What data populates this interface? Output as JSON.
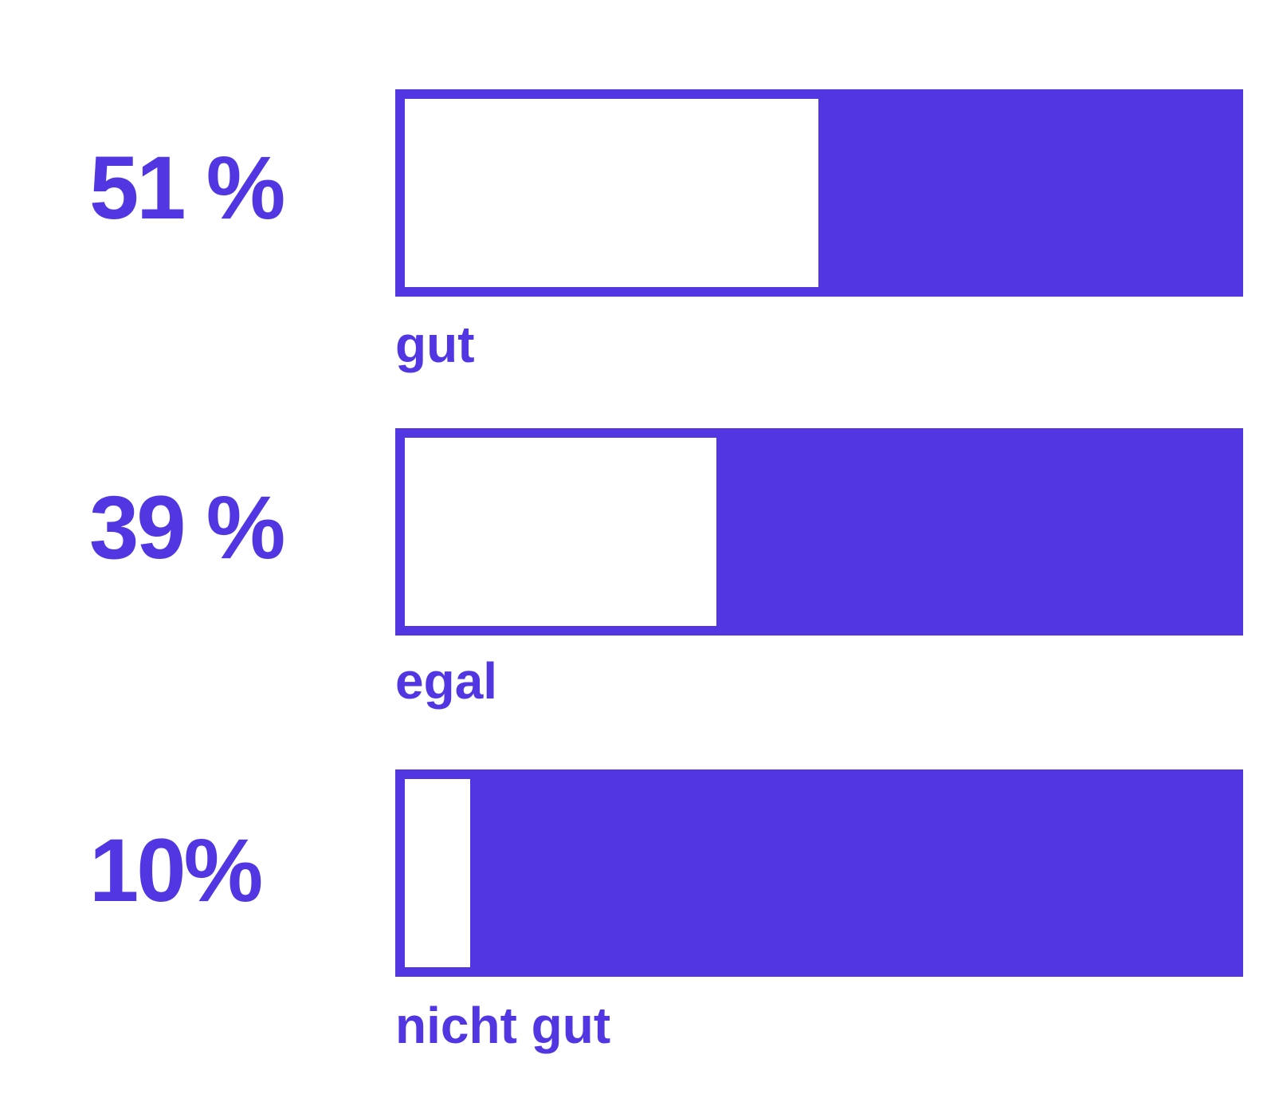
{
  "chart_data": {
    "type": "bar",
    "orientation": "horizontal",
    "categories": [
      "gut",
      "egal",
      "nicht gut"
    ],
    "values": [
      51,
      39,
      10
    ],
    "value_labels": [
      "51 %",
      "39 %",
      "10%"
    ],
    "unit": "%",
    "xlim": [
      0,
      100
    ],
    "grid": false,
    "legend": "none",
    "colors": {
      "accent": "#5236e2",
      "fill": "#ffffff"
    }
  }
}
